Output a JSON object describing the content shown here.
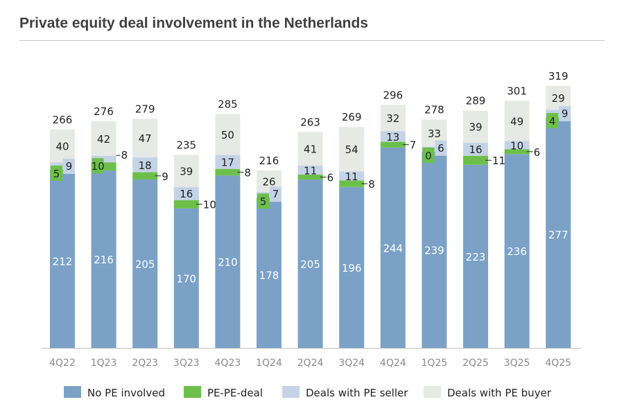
{
  "chart_data": {
    "type": "bar",
    "stacked": true,
    "title": "Private equity deal involvement in the Netherlands",
    "categories": [
      "4Q22",
      "1Q23",
      "2Q23",
      "3Q23",
      "4Q23",
      "1Q24",
      "2Q24",
      "3Q24",
      "4Q24",
      "1Q25",
      "2Q25",
      "3Q25",
      "4Q25"
    ],
    "series": [
      {
        "name": "No PE involved",
        "color": "#7ba1c7",
        "values": [
          212,
          216,
          205,
          170,
          210,
          178,
          205,
          196,
          244,
          239,
          223,
          236,
          277
        ]
      },
      {
        "name": "PE-PE-deal",
        "color": "#6cc04a",
        "values": [
          5,
          10,
          9,
          10,
          8,
          5,
          6,
          8,
          7,
          0,
          11,
          6,
          4
        ]
      },
      {
        "name": "Deals with PE seller",
        "color": "#c5d3e6",
        "values": [
          9,
          8,
          18,
          16,
          17,
          7,
          11,
          11,
          13,
          6,
          16,
          10,
          9
        ]
      },
      {
        "name": "Deals with PE buyer",
        "color": "#e6e9e4",
        "values": [
          40,
          42,
          47,
          39,
          50,
          26,
          41,
          54,
          32,
          33,
          39,
          49,
          29
        ]
      }
    ],
    "totals": [
      266,
      276,
      279,
      235,
      285,
      216,
      263,
      269,
      296,
      278,
      289,
      301,
      319
    ],
    "ylim": [
      0,
      319
    ],
    "grid": false,
    "legend_position": "bottom",
    "xlabel": "",
    "ylabel": ""
  }
}
